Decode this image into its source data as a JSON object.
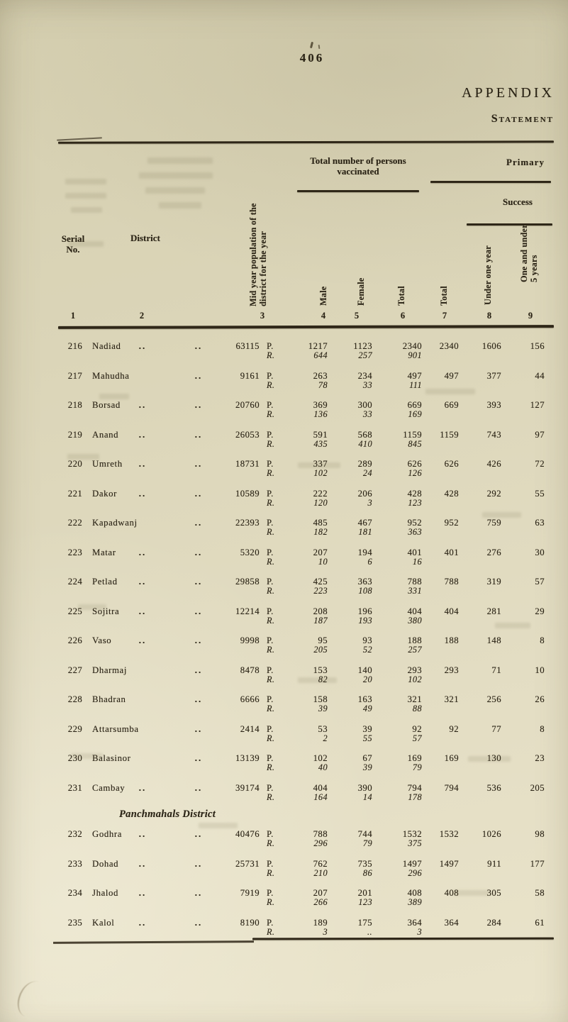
{
  "page": {
    "number": "406",
    "heading": "APPENDIX",
    "subheading": "Statement"
  },
  "table": {
    "header": {
      "serial_line1": "Serial",
      "serial_line2": "No.",
      "district": "District",
      "population_line1": "Mid year population of the",
      "population_line2": "district for the year",
      "vaccinated_group": "Total number of persons vaccinated",
      "primary_group": "Primary",
      "success_group": "Success",
      "male": "Male",
      "female": "Female",
      "total_vaccinated": "Total",
      "total_primary": "Total",
      "under_one_year": "Under one year",
      "one_under_five_line1": "One and under",
      "one_under_five_line2": "5 years",
      "col_numbers": [
        "1",
        "2",
        "3",
        "4",
        "5",
        "6",
        "7",
        "8",
        "9"
      ]
    },
    "row_labels": {
      "primary": "P.",
      "revaccinated": "R."
    },
    "groups": [
      {
        "section": "",
        "rows": [
          {
            "no": "216",
            "name": "Nadiad",
            "dots1": "..",
            "leader": "..",
            "population": "63115",
            "p": [
              "1217",
              "1123",
              "2340",
              "2340",
              "1606",
              "156"
            ],
            "r": [
              "644",
              "257",
              "901"
            ]
          },
          {
            "no": "217",
            "name": "Mahudha",
            "dots1": "",
            "leader": "..",
            "population": "9161",
            "p": [
              "263",
              "234",
              "497",
              "497",
              "377",
              "44"
            ],
            "r": [
              "78",
              "33",
              "111"
            ]
          },
          {
            "no": "218",
            "name": "Borsad",
            "dots1": "..",
            "leader": "..",
            "population": "20760",
            "p": [
              "369",
              "300",
              "669",
              "669",
              "393",
              "127"
            ],
            "r": [
              "136",
              "33",
              "169"
            ]
          },
          {
            "no": "219",
            "name": "Anand",
            "dots1": "..",
            "leader": "..",
            "population": "26053",
            "p": [
              "591",
              "568",
              "1159",
              "1159",
              "743",
              "97"
            ],
            "r": [
              "435",
              "410",
              "845"
            ]
          },
          {
            "no": "220",
            "name": "Umreth",
            "dots1": "..",
            "leader": "..",
            "population": "18731",
            "p": [
              "337",
              "289",
              "626",
              "626",
              "426",
              "72"
            ],
            "r": [
              "102",
              "24",
              "126"
            ]
          },
          {
            "no": "221",
            "name": "Dakor",
            "dots1": "..",
            "leader": "..",
            "population": "10589",
            "p": [
              "222",
              "206",
              "428",
              "428",
              "292",
              "55"
            ],
            "r": [
              "120",
              "3",
              "123"
            ]
          },
          {
            "no": "222",
            "name": "Kapadwanj",
            "dots1": "",
            "leader": "..",
            "population": "22393",
            "p": [
              "485",
              "467",
              "952",
              "952",
              "759",
              "63"
            ],
            "r": [
              "182",
              "181",
              "363"
            ]
          },
          {
            "no": "223",
            "name": "Matar",
            "dots1": "..",
            "leader": "..",
            "population": "5320",
            "p": [
              "207",
              "194",
              "401",
              "401",
              "276",
              "30"
            ],
            "r": [
              "10",
              "6",
              "16"
            ]
          },
          {
            "no": "224",
            "name": "Petlad",
            "dots1": "..",
            "leader": "..",
            "population": "29858",
            "p": [
              "425",
              "363",
              "788",
              "788",
              "319",
              "57"
            ],
            "r": [
              "223",
              "108",
              "331"
            ]
          },
          {
            "no": "225",
            "name": "Sojitra",
            "dots1": "..",
            "leader": "..",
            "population": "12214",
            "p": [
              "208",
              "196",
              "404",
              "404",
              "281",
              "29"
            ],
            "r": [
              "187",
              "193",
              "380"
            ]
          },
          {
            "no": "226",
            "name": "Vaso",
            "dots1": "..",
            "leader": "..",
            "population": "9998",
            "p": [
              "95",
              "93",
              "188",
              "188",
              "148",
              "8"
            ],
            "r": [
              "205",
              "52",
              "257"
            ]
          },
          {
            "no": "227",
            "name": "Dharmaj",
            "dots1": "",
            "leader": "..",
            "population": "8478",
            "p": [
              "153",
              "140",
              "293",
              "293",
              "71",
              "10"
            ],
            "r": [
              "82",
              "20",
              "102"
            ]
          },
          {
            "no": "228",
            "name": "Bhadran",
            "dots1": "",
            "leader": "..",
            "population": "6666",
            "p": [
              "158",
              "163",
              "321",
              "321",
              "256",
              "26"
            ],
            "r": [
              "39",
              "49",
              "88"
            ]
          },
          {
            "no": "229",
            "name": "Attarsumba",
            "dots1": "",
            "leader": "..",
            "population": "2414",
            "p": [
              "53",
              "39",
              "92",
              "92",
              "77",
              "8"
            ],
            "r": [
              "2",
              "55",
              "57"
            ]
          },
          {
            "no": "230",
            "name": "Balasinor",
            "dots1": "",
            "leader": "..",
            "population": "13139",
            "p": [
              "102",
              "67",
              "169",
              "169",
              "130",
              "23"
            ],
            "r": [
              "40",
              "39",
              "79"
            ]
          },
          {
            "no": "231",
            "name": "Cambay",
            "dots1": "..",
            "leader": "..",
            "population": "39174",
            "p": [
              "404",
              "390",
              "794",
              "794",
              "536",
              "205"
            ],
            "r": [
              "164",
              "14",
              "178"
            ]
          }
        ]
      },
      {
        "section": "Panchmahals District",
        "rows": [
          {
            "no": "232",
            "name": "Godhra",
            "dots1": "..",
            "leader": "..",
            "population": "40476",
            "p": [
              "788",
              "744",
              "1532",
              "1532",
              "1026",
              "98"
            ],
            "r": [
              "296",
              "79",
              "375"
            ]
          },
          {
            "no": "233",
            "name": "Dohad",
            "dots1": "..",
            "leader": "..",
            "population": "25731",
            "p": [
              "762",
              "735",
              "1497",
              "1497",
              "911",
              "177"
            ],
            "r": [
              "210",
              "86",
              "296"
            ]
          },
          {
            "no": "234",
            "name": "Jhalod",
            "dots1": "..",
            "leader": "..",
            "population": "7919",
            "p": [
              "207",
              "201",
              "408",
              "408",
              "305",
              "58"
            ],
            "r": [
              "266",
              "123",
              "389"
            ]
          },
          {
            "no": "235",
            "name": "Kalol",
            "dots1": "..",
            "leader": "..",
            "population": "8190",
            "p": [
              "189",
              "175",
              "364",
              "364",
              "284",
              "61"
            ],
            "r": [
              "3",
              "..",
              "3"
            ]
          }
        ]
      }
    ]
  }
}
